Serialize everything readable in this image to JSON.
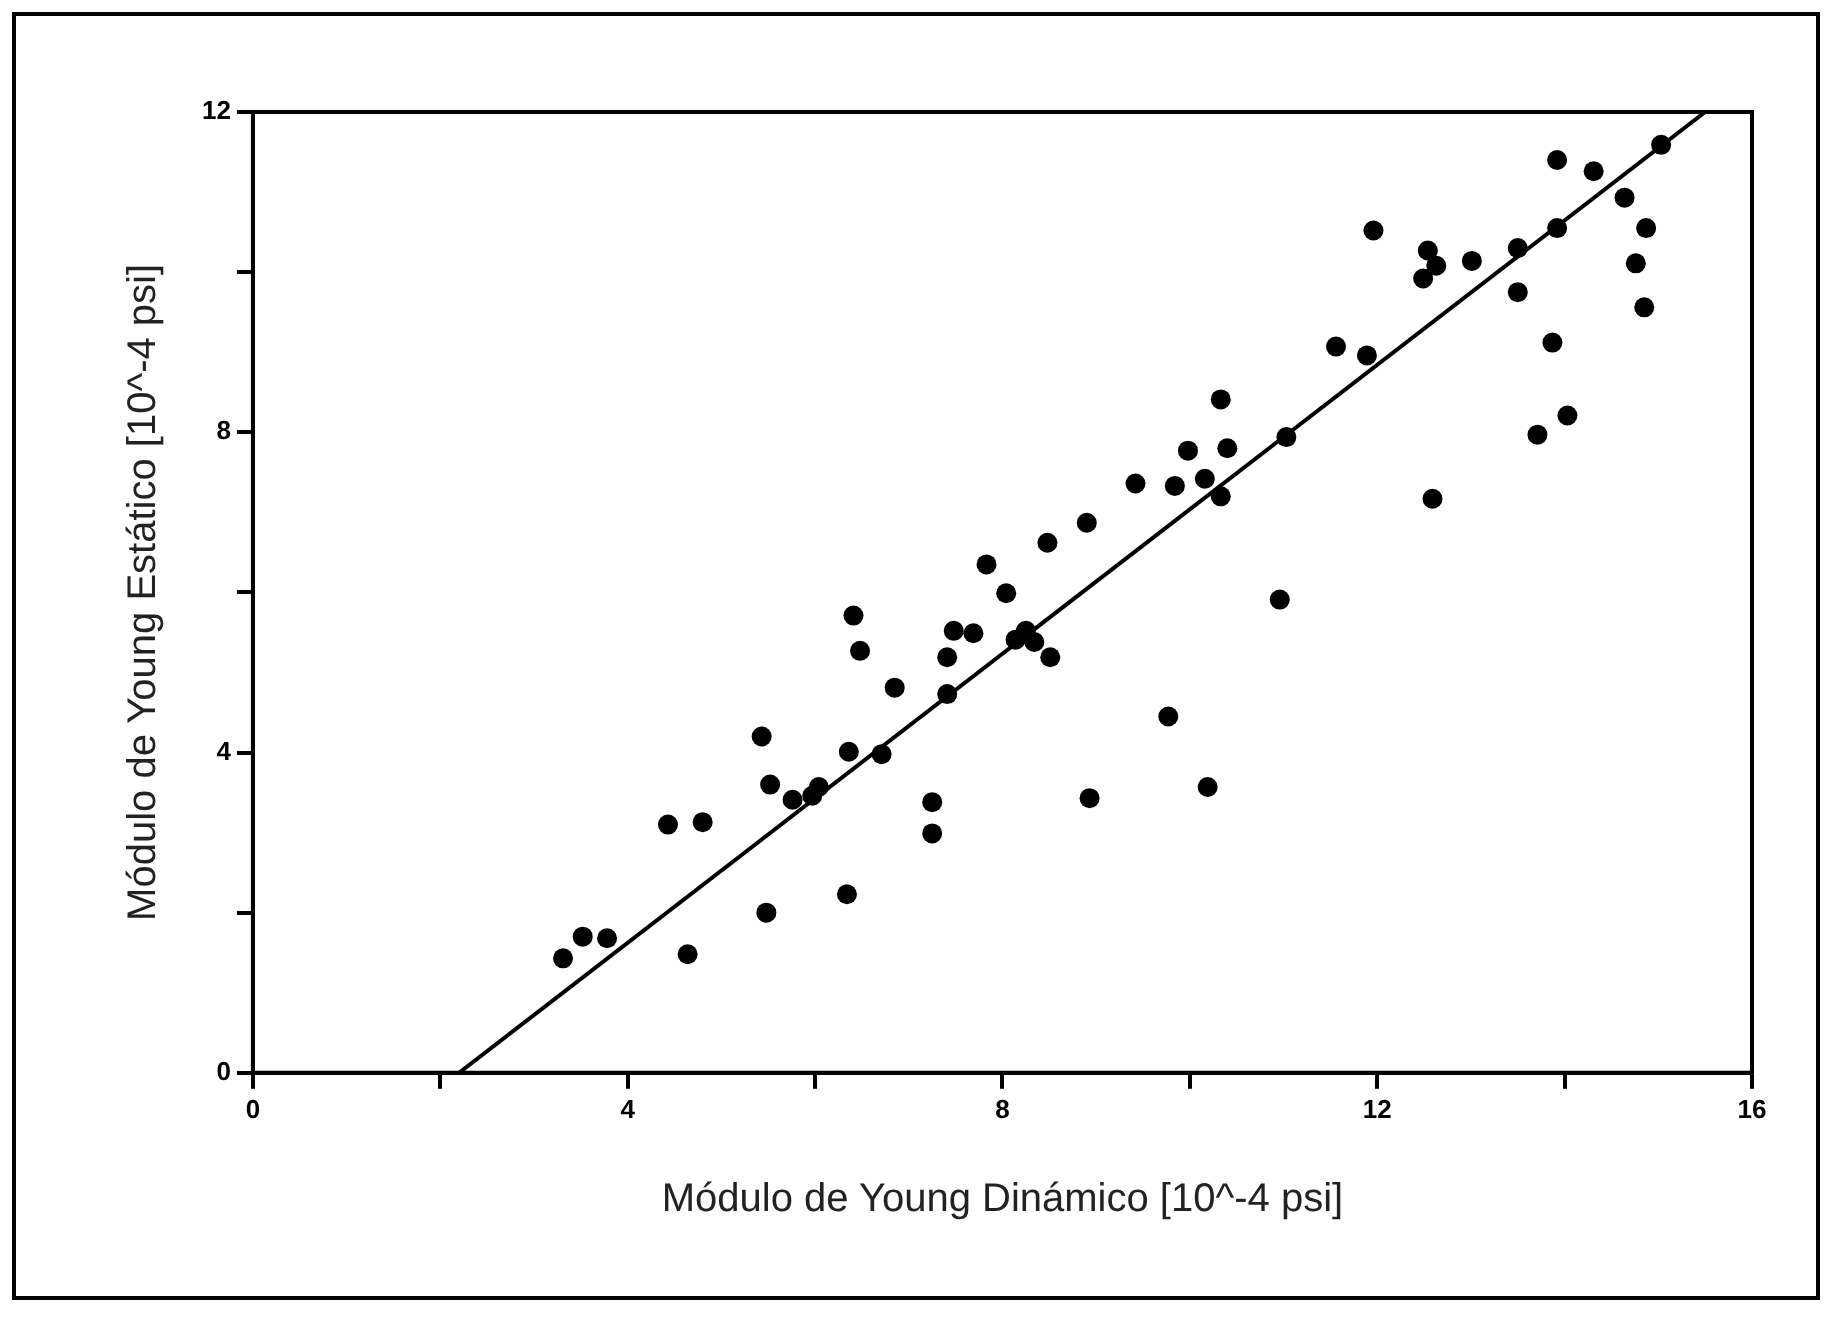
{
  "chart_data": {
    "type": "scatter",
    "xlabel": "Módulo de Young Dinámico [10^-4 psi]",
    "ylabel": "Módulo de Young Estático [10^-4 psi]",
    "xlim": [
      0,
      16
    ],
    "ylim": [
      0,
      12
    ],
    "xticks": [
      0,
      {
        "value": 2,
        "label": null
      },
      4,
      {
        "value": 6,
        "label": null
      },
      8,
      {
        "value": 10,
        "label": null
      },
      12,
      {
        "value": 14,
        "label": null
      },
      16
    ],
    "yticks": [
      0,
      {
        "value": 2,
        "label": null
      },
      4,
      {
        "value": 6,
        "label": null
      },
      8,
      {
        "value": 10,
        "label": null
      },
      12
    ],
    "grid": false,
    "legend": false,
    "marker": "circle",
    "series": [
      {
        "type": "scatter",
        "color": "#000000",
        "x": [
          3.31,
          3.52,
          3.78,
          4.64,
          4.43,
          4.8,
          5.48,
          6.34,
          5.43,
          5.52,
          5.76,
          5.97,
          6.04,
          6.36,
          6.71,
          6.41,
          6.48,
          6.85,
          7.25,
          7.25,
          7.41,
          7.41,
          7.48,
          7.69,
          7.83,
          8.04,
          8.14,
          8.25,
          8.34,
          8.51,
          8.48,
          8.93,
          9.77,
          10.19,
          8.9,
          9.42,
          9.84,
          9.98,
          10.16,
          10.33,
          10.4,
          10.33,
          11.03,
          10.96,
          12.59,
          11.56,
          11.89,
          11.96,
          12.49,
          12.54,
          12.63,
          13.01,
          13.5,
          13.5,
          13.71,
          14.03,
          13.87,
          13.92,
          13.92,
          14.31,
          14.64,
          14.87,
          14.76,
          14.85,
          15.03
        ],
        "values": [
          1.43,
          1.7,
          1.68,
          1.48,
          3.1,
          3.13,
          2.0,
          2.23,
          4.2,
          3.6,
          3.41,
          3.46,
          3.57,
          4.01,
          3.98,
          5.71,
          5.27,
          4.81,
          3.38,
          2.99,
          4.73,
          5.19,
          5.52,
          5.49,
          6.35,
          5.99,
          5.41,
          5.52,
          5.38,
          5.19,
          6.62,
          3.43,
          4.45,
          3.57,
          6.87,
          7.36,
          7.33,
          7.77,
          7.42,
          7.2,
          7.8,
          8.41,
          7.94,
          5.91,
          7.17,
          9.07,
          8.96,
          10.52,
          9.92,
          10.27,
          10.08,
          10.14,
          10.3,
          9.75,
          7.97,
          8.21,
          9.12,
          10.55,
          11.4,
          11.26,
          10.93,
          10.55,
          10.11,
          9.56,
          11.59
        ]
      },
      {
        "type": "line",
        "color": "#000000",
        "line_style": "solid",
        "marker": "none",
        "x": [
          2.2,
          15.5
        ],
        "values": [
          0,
          12
        ]
      }
    ]
  }
}
